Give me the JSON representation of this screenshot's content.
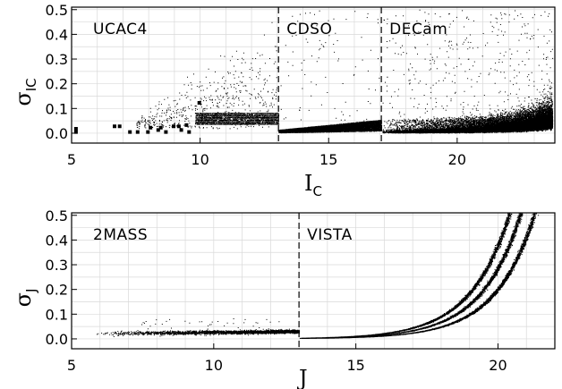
{
  "chart_data": [
    {
      "type": "scatter",
      "title": "",
      "xlabel": "I",
      "xlabel_sub": "C",
      "ylabel": "σ",
      "ylabel_sub": "IC",
      "xlim": [
        5,
        23.8
      ],
      "ylim": [
        -0.04,
        0.51
      ],
      "xticks": [
        5,
        10,
        15,
        20
      ],
      "yticks": [
        0.0,
        0.1,
        0.2,
        0.3,
        0.4,
        0.5
      ],
      "ytick_labels": [
        "0.0",
        "0.1",
        "0.2",
        "0.3",
        "0.4",
        "0.5"
      ],
      "grid": true,
      "dividers": [
        13.05,
        17.05
      ],
      "regions": [
        {
          "label": "UCAC4",
          "x_range": [
            5,
            13.05
          ]
        },
        {
          "label": "CDSO",
          "x_range": [
            13.05,
            17.05
          ]
        },
        {
          "label": "DECam",
          "x_range": [
            17.05,
            23.8
          ]
        }
      ],
      "error_model": {
        "UCAC4": "scattered 0.0–0.5 with dense band 0.04–0.08 at I=10–13",
        "CDSO": "0.005–0.04 rising slowly",
        "DECam": "curve ≈ 0.005 + 0.0009·exp(0.59·(I−17)), spread up to 0.5"
      }
    },
    {
      "type": "scatter",
      "title": "",
      "xlabel": "J",
      "ylabel": "σ",
      "ylabel_sub": "J",
      "xlim": [
        5,
        22
      ],
      "ylim": [
        -0.04,
        0.51
      ],
      "xticks": [
        5,
        10,
        15,
        20
      ],
      "yticks": [
        0.0,
        0.1,
        0.2,
        0.3,
        0.4,
        0.5
      ],
      "ytick_labels": [
        "0.0",
        "0.1",
        "0.2",
        "0.3",
        "0.4",
        "0.5"
      ],
      "grid": true,
      "dividers": [
        13.0
      ],
      "regions": [
        {
          "label": "2MASS",
          "x_range": [
            5,
            13.0
          ]
        },
        {
          "label": "VISTA",
          "x_range": [
            13.0,
            22
          ]
        }
      ],
      "error_model": {
        "2MASS": "≈0.02–0.03 nearly flat, sparse outliers to 0.08",
        "VISTA": "three tight branches ≈ 0.002 + a·exp(0.72·(J−13)), reaching 0.37–0.5 at J=21.8"
      }
    }
  ]
}
